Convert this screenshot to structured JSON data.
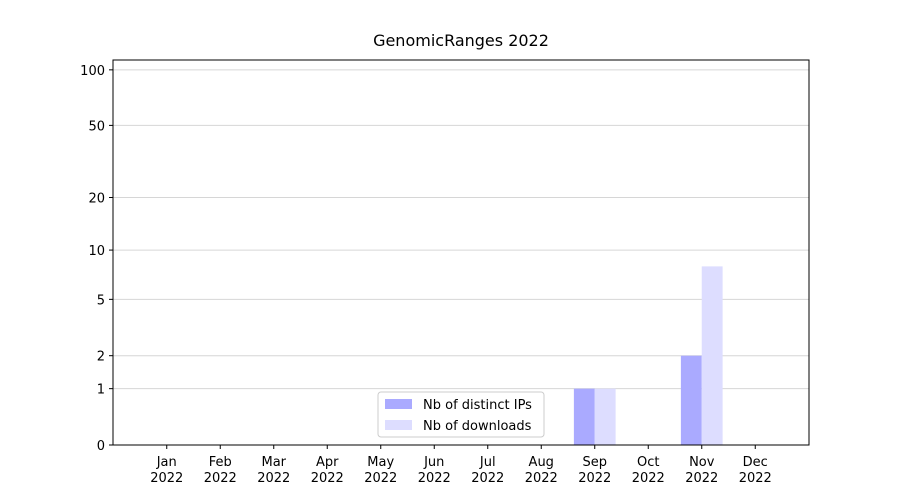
{
  "chart_data": {
    "type": "bar",
    "title": "GenomicRanges 2022",
    "categories": [
      "Jan\n2022",
      "Feb\n2022",
      "Mar\n2022",
      "Apr\n2022",
      "May\n2022",
      "Jun\n2022",
      "Jul\n2022",
      "Aug\n2022",
      "Sep\n2022",
      "Oct\n2022",
      "Nov\n2022",
      "Dec\n2022"
    ],
    "series": [
      {
        "name": "Nb of distinct IPs",
        "color": "#aaaaff",
        "values": [
          0,
          0,
          0,
          0,
          0,
          0,
          0,
          0,
          1,
          0,
          2,
          0
        ]
      },
      {
        "name": "Nb of downloads",
        "color": "#ddddff",
        "values": [
          0,
          0,
          0,
          0,
          0,
          0,
          0,
          0,
          1,
          0,
          8,
          0
        ]
      }
    ],
    "ylim": [
      0,
      113
    ],
    "yticks": [
      0,
      1,
      2,
      5,
      10,
      20,
      50,
      100
    ],
    "yscale": "log1p",
    "grid": true,
    "legend": "lower center"
  }
}
